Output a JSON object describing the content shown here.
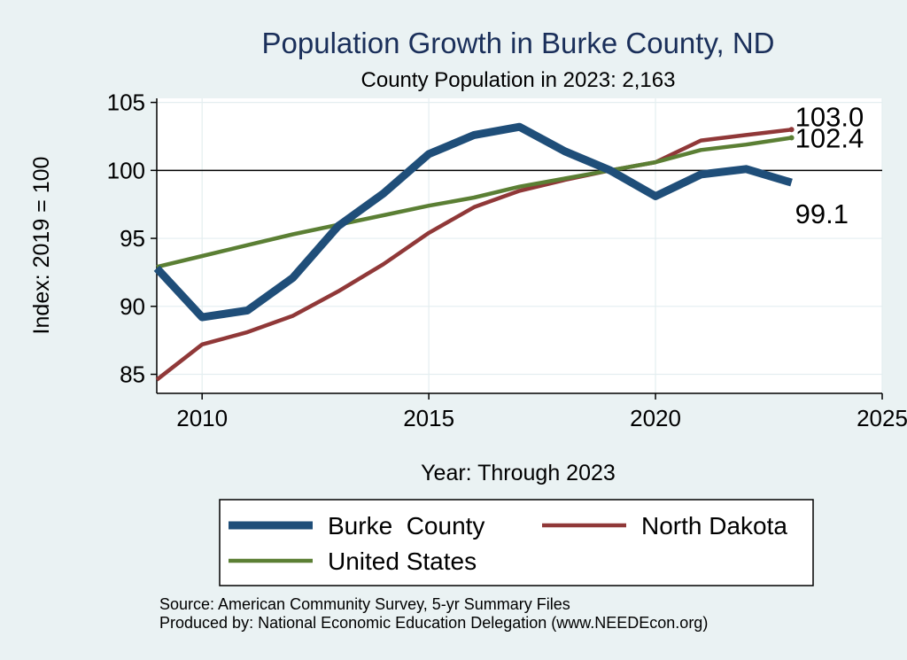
{
  "chart_data": {
    "type": "line",
    "title": "Population Growth in Burke County, ND",
    "subtitle": "County Population in 2023: 2,163",
    "xlabel": "Year: Through 2023",
    "ylabel": "Index: 2019 = 100",
    "xlim": [
      2009,
      2025
    ],
    "ylim": [
      83.6,
      105.3
    ],
    "xticks": [
      2010,
      2015,
      2020,
      2025
    ],
    "yticks": [
      85,
      90,
      95,
      100,
      105
    ],
    "reference_line": 100,
    "x": [
      2009,
      2010,
      2011,
      2012,
      2013,
      2014,
      2015,
      2016,
      2017,
      2018,
      2019,
      2020,
      2021,
      2022,
      2023
    ],
    "series": [
      {
        "name": "Burke  County",
        "color": "#1f4e79",
        "values": [
          92.8,
          89.2,
          89.7,
          92.1,
          95.9,
          98.3,
          101.2,
          102.6,
          103.2,
          101.4,
          100.0,
          98.1,
          99.7,
          100.1,
          99.1
        ],
        "end_label": "99.1"
      },
      {
        "name": "North Dakota",
        "color": "#903838",
        "values": [
          84.6,
          87.2,
          88.1,
          89.3,
          91.1,
          93.1,
          95.4,
          97.3,
          98.5,
          99.3,
          100.0,
          100.6,
          102.2,
          102.6,
          103.0
        ],
        "end_label": "103.0"
      },
      {
        "name": "United States",
        "color": "#5b7f34",
        "values": [
          92.9,
          93.7,
          94.5,
          95.3,
          96.0,
          96.7,
          97.4,
          98.0,
          98.8,
          99.4,
          100.0,
          100.6,
          101.5,
          101.9,
          102.4
        ],
        "end_label": "102.4"
      }
    ],
    "legend_position": "bottom",
    "source_lines": [
      "Source: American Community Survey, 5-yr Summary Files",
      "Produced by: National Economic Education Delegation (www.NEEDEcon.org)"
    ]
  },
  "colors": {
    "background": "#eaf2f3",
    "plot_background": "#ffffff",
    "title": "#1a2f5a",
    "gridline": "#e4eef0"
  }
}
